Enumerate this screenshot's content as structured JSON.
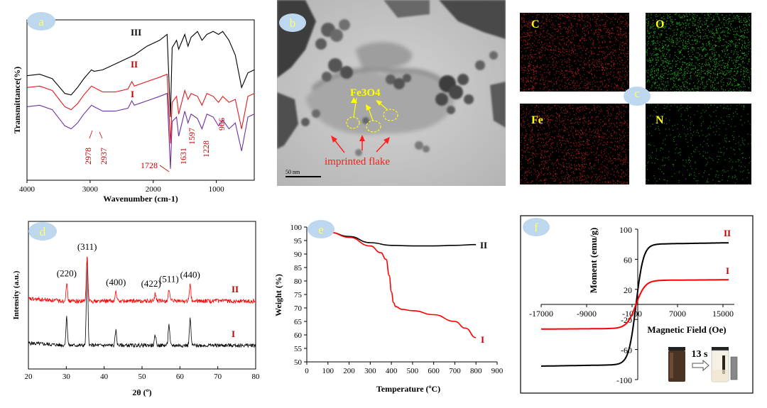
{
  "panels": {
    "a": "a",
    "b": "b",
    "c": "c",
    "d": "d",
    "e": "e",
    "f": "f"
  },
  "colors": {
    "series_I_a": "#7030a0",
    "series_II": "#e31a1c",
    "series_III": "#000000",
    "label_red": "#c00000",
    "badge": "#bdd7ee"
  },
  "tem": {
    "label_fe3o4": "Fe3O4",
    "label_flake": "imprinted flake",
    "scale_bar": "50 nm"
  },
  "eds": {
    "maps": [
      {
        "element": "C",
        "color": "#cc2222"
      },
      {
        "element": "O",
        "color": "#22cc22"
      },
      {
        "element": "Fe",
        "color": "#cc2222"
      },
      {
        "element": "N",
        "color": "#22aa22"
      }
    ]
  },
  "inset": {
    "time_label": "13 s"
  },
  "chart_data": [
    {
      "id": "a",
      "type": "line",
      "xlabel": "Wavenumber (cm-1)",
      "ylabel": "Transmittance(%)",
      "xlim": [
        4000,
        400
      ],
      "x_reversed": true,
      "xticks": [
        4000,
        3000,
        2000,
        1000
      ],
      "series": [
        {
          "name": "I",
          "color": "#7030a0",
          "points": [
            [
              4000,
              0.55
            ],
            [
              3800,
              0.54
            ],
            [
              3600,
              0.57
            ],
            [
              3400,
              0.68
            ],
            [
              3300,
              0.7
            ],
            [
              3200,
              0.66
            ],
            [
              3100,
              0.6
            ],
            [
              2978,
              0.54
            ],
            [
              2937,
              0.55
            ],
            [
              2800,
              0.58
            ],
            [
              2600,
              0.58
            ],
            [
              2400,
              0.56
            ],
            [
              2340,
              0.51
            ],
            [
              2300,
              0.54
            ],
            [
              2100,
              0.51
            ],
            [
              1900,
              0.48
            ],
            [
              1780,
              0.46
            ],
            [
              1728,
              0.97
            ],
            [
              1700,
              0.65
            ],
            [
              1631,
              0.62
            ],
            [
              1597,
              0.75
            ],
            [
              1500,
              0.58
            ],
            [
              1450,
              0.66
            ],
            [
              1400,
              0.6
            ],
            [
              1300,
              0.63
            ],
            [
              1228,
              0.7
            ],
            [
              1150,
              0.6
            ],
            [
              1050,
              0.62
            ],
            [
              966,
              0.68
            ],
            [
              900,
              0.64
            ],
            [
              800,
              0.7
            ],
            [
              700,
              0.66
            ],
            [
              600,
              0.85
            ],
            [
              500,
              0.62
            ],
            [
              400,
              0.6
            ]
          ]
        },
        {
          "name": "II",
          "color": "#e31a1c",
          "points": [
            [
              4000,
              0.42
            ],
            [
              3800,
              0.41
            ],
            [
              3600,
              0.44
            ],
            [
              3400,
              0.55
            ],
            [
              3300,
              0.57
            ],
            [
              3200,
              0.53
            ],
            [
              3100,
              0.47
            ],
            [
              2978,
              0.41
            ],
            [
              2937,
              0.42
            ],
            [
              2800,
              0.45
            ],
            [
              2600,
              0.45
            ],
            [
              2400,
              0.43
            ],
            [
              2340,
              0.38
            ],
            [
              2300,
              0.41
            ],
            [
              2100,
              0.38
            ],
            [
              1900,
              0.35
            ],
            [
              1780,
              0.33
            ],
            [
              1728,
              0.8
            ],
            [
              1700,
              0.52
            ],
            [
              1631,
              0.48
            ],
            [
              1597,
              0.6
            ],
            [
              1500,
              0.44
            ],
            [
              1450,
              0.5
            ],
            [
              1400,
              0.46
            ],
            [
              1300,
              0.48
            ],
            [
              1228,
              0.54
            ],
            [
              1150,
              0.46
            ],
            [
              1050,
              0.48
            ],
            [
              966,
              0.52
            ],
            [
              900,
              0.48
            ],
            [
              800,
              0.52
            ],
            [
              700,
              0.5
            ],
            [
              600,
              0.7
            ],
            [
              500,
              0.48
            ],
            [
              400,
              0.46
            ]
          ]
        },
        {
          "name": "III",
          "color": "#000000",
          "points": [
            [
              4000,
              0.34
            ],
            [
              3800,
              0.33
            ],
            [
              3600,
              0.36
            ],
            [
              3400,
              0.46
            ],
            [
              3300,
              0.47
            ],
            [
              3200,
              0.42
            ],
            [
              3100,
              0.36
            ],
            [
              2978,
              0.3
            ],
            [
              2937,
              0.31
            ],
            [
              2800,
              0.3
            ],
            [
              2600,
              0.26
            ],
            [
              2400,
              0.22
            ],
            [
              2300,
              0.2
            ],
            [
              2100,
              0.14
            ],
            [
              1900,
              0.1
            ],
            [
              1780,
              0.06
            ],
            [
              1728,
              0.62
            ],
            [
              1700,
              0.15
            ],
            [
              1631,
              0.1
            ],
            [
              1597,
              0.16
            ],
            [
              1500,
              0.06
            ],
            [
              1450,
              0.14
            ],
            [
              1400,
              0.08
            ],
            [
              1300,
              0.04
            ],
            [
              1228,
              0.1
            ],
            [
              1150,
              0.06
            ],
            [
              1050,
              0.04
            ],
            [
              966,
              0.06
            ],
            [
              900,
              0.04
            ],
            [
              800,
              0.1
            ],
            [
              700,
              0.2
            ],
            [
              600,
              0.42
            ],
            [
              500,
              0.32
            ],
            [
              400,
              0.3
            ]
          ]
        }
      ],
      "annotations": [
        "2978",
        "2937",
        "1728",
        "1631",
        "1597",
        "1228",
        "966"
      ],
      "series_labels": [
        "III",
        "II",
        "I"
      ]
    },
    {
      "id": "d",
      "type": "line",
      "xlabel": "2θ (º)",
      "ylabel": "Intensity  (a.u.)",
      "xlim": [
        20,
        80
      ],
      "xticks": [
        20,
        30,
        40,
        50,
        60,
        70,
        80
      ],
      "series": [
        {
          "name": "I",
          "color": "#000000",
          "baseline": 0.16,
          "noise": 0.025,
          "peaks": [
            [
              30.1,
              0.19
            ],
            [
              35.5,
              0.6
            ],
            [
              43.1,
              0.1
            ],
            [
              53.5,
              0.07
            ],
            [
              57.1,
              0.14
            ],
            [
              62.7,
              0.18
            ]
          ]
        },
        {
          "name": "II",
          "color": "#ff0000",
          "baseline": 0.46,
          "noise": 0.028,
          "peaks": [
            [
              30.1,
              0.12
            ],
            [
              35.5,
              0.3
            ],
            [
              43.1,
              0.06
            ],
            [
              53.5,
              0.05
            ],
            [
              57.1,
              0.08
            ],
            [
              62.7,
              0.11
            ]
          ]
        }
      ],
      "peak_labels": [
        {
          "text": "(220)",
          "x": 30.1
        },
        {
          "text": "(311)",
          "x": 35.5
        },
        {
          "text": "(400)",
          "x": 43.1
        },
        {
          "text": "(422)",
          "x": 53.5
        },
        {
          "text": "(511)",
          "x": 57.1
        },
        {
          "text": "(440)",
          "x": 62.7
        }
      ],
      "series_labels": [
        "II",
        "I"
      ]
    },
    {
      "id": "e",
      "type": "line",
      "xlabel": "Temperature  (ºC)",
      "ylabel": "Weight  (%)",
      "xlim": [
        0,
        900
      ],
      "ylim": [
        50,
        100
      ],
      "xticks": [
        0,
        100,
        200,
        300,
        400,
        500,
        600,
        700,
        800,
        900
      ],
      "yticks": [
        50,
        55,
        60,
        65,
        70,
        75,
        80,
        85,
        90,
        95,
        100
      ],
      "series": [
        {
          "name": "II",
          "color": "#000000",
          "points": [
            [
              110,
              98
            ],
            [
              200,
              96.5
            ],
            [
              300,
              94.2
            ],
            [
              400,
              93.2
            ],
            [
              500,
              93
            ],
            [
              600,
              93
            ],
            [
              700,
              93.2
            ],
            [
              800,
              93.5
            ]
          ]
        },
        {
          "name": "I",
          "color": "#ff0000",
          "points": [
            [
              110,
              98
            ],
            [
              200,
              96.2
            ],
            [
              300,
              93
            ],
            [
              350,
              90.5
            ],
            [
              375,
              88
            ],
            [
              390,
              82
            ],
            [
              400,
              76
            ],
            [
              410,
              72
            ],
            [
              420,
              70.5
            ],
            [
              450,
              69.5
            ],
            [
              500,
              69
            ],
            [
              600,
              67.5
            ],
            [
              700,
              65
            ],
            [
              750,
              62.5
            ],
            [
              800,
              59
            ]
          ]
        }
      ],
      "series_labels": [
        "II",
        "I"
      ]
    },
    {
      "id": "f",
      "type": "line",
      "xlabel": "Magnetic Field (Oe)",
      "ylabel": "Moment (emu/g)",
      "xlim": [
        -17000,
        17000
      ],
      "ylim": [
        -100,
        100
      ],
      "xticks": [
        -17000,
        -9000,
        -1000,
        7000,
        15000
      ],
      "yticks": [
        -100,
        -60,
        -20,
        20,
        60,
        100
      ],
      "series": [
        {
          "name": "II",
          "color": "#000000",
          "saturation": 80,
          "field_scale": 1300
        },
        {
          "name": "I",
          "color": "#ff0000",
          "saturation": 32,
          "field_scale": 1600
        }
      ],
      "series_labels": [
        "II",
        "I"
      ]
    }
  ]
}
